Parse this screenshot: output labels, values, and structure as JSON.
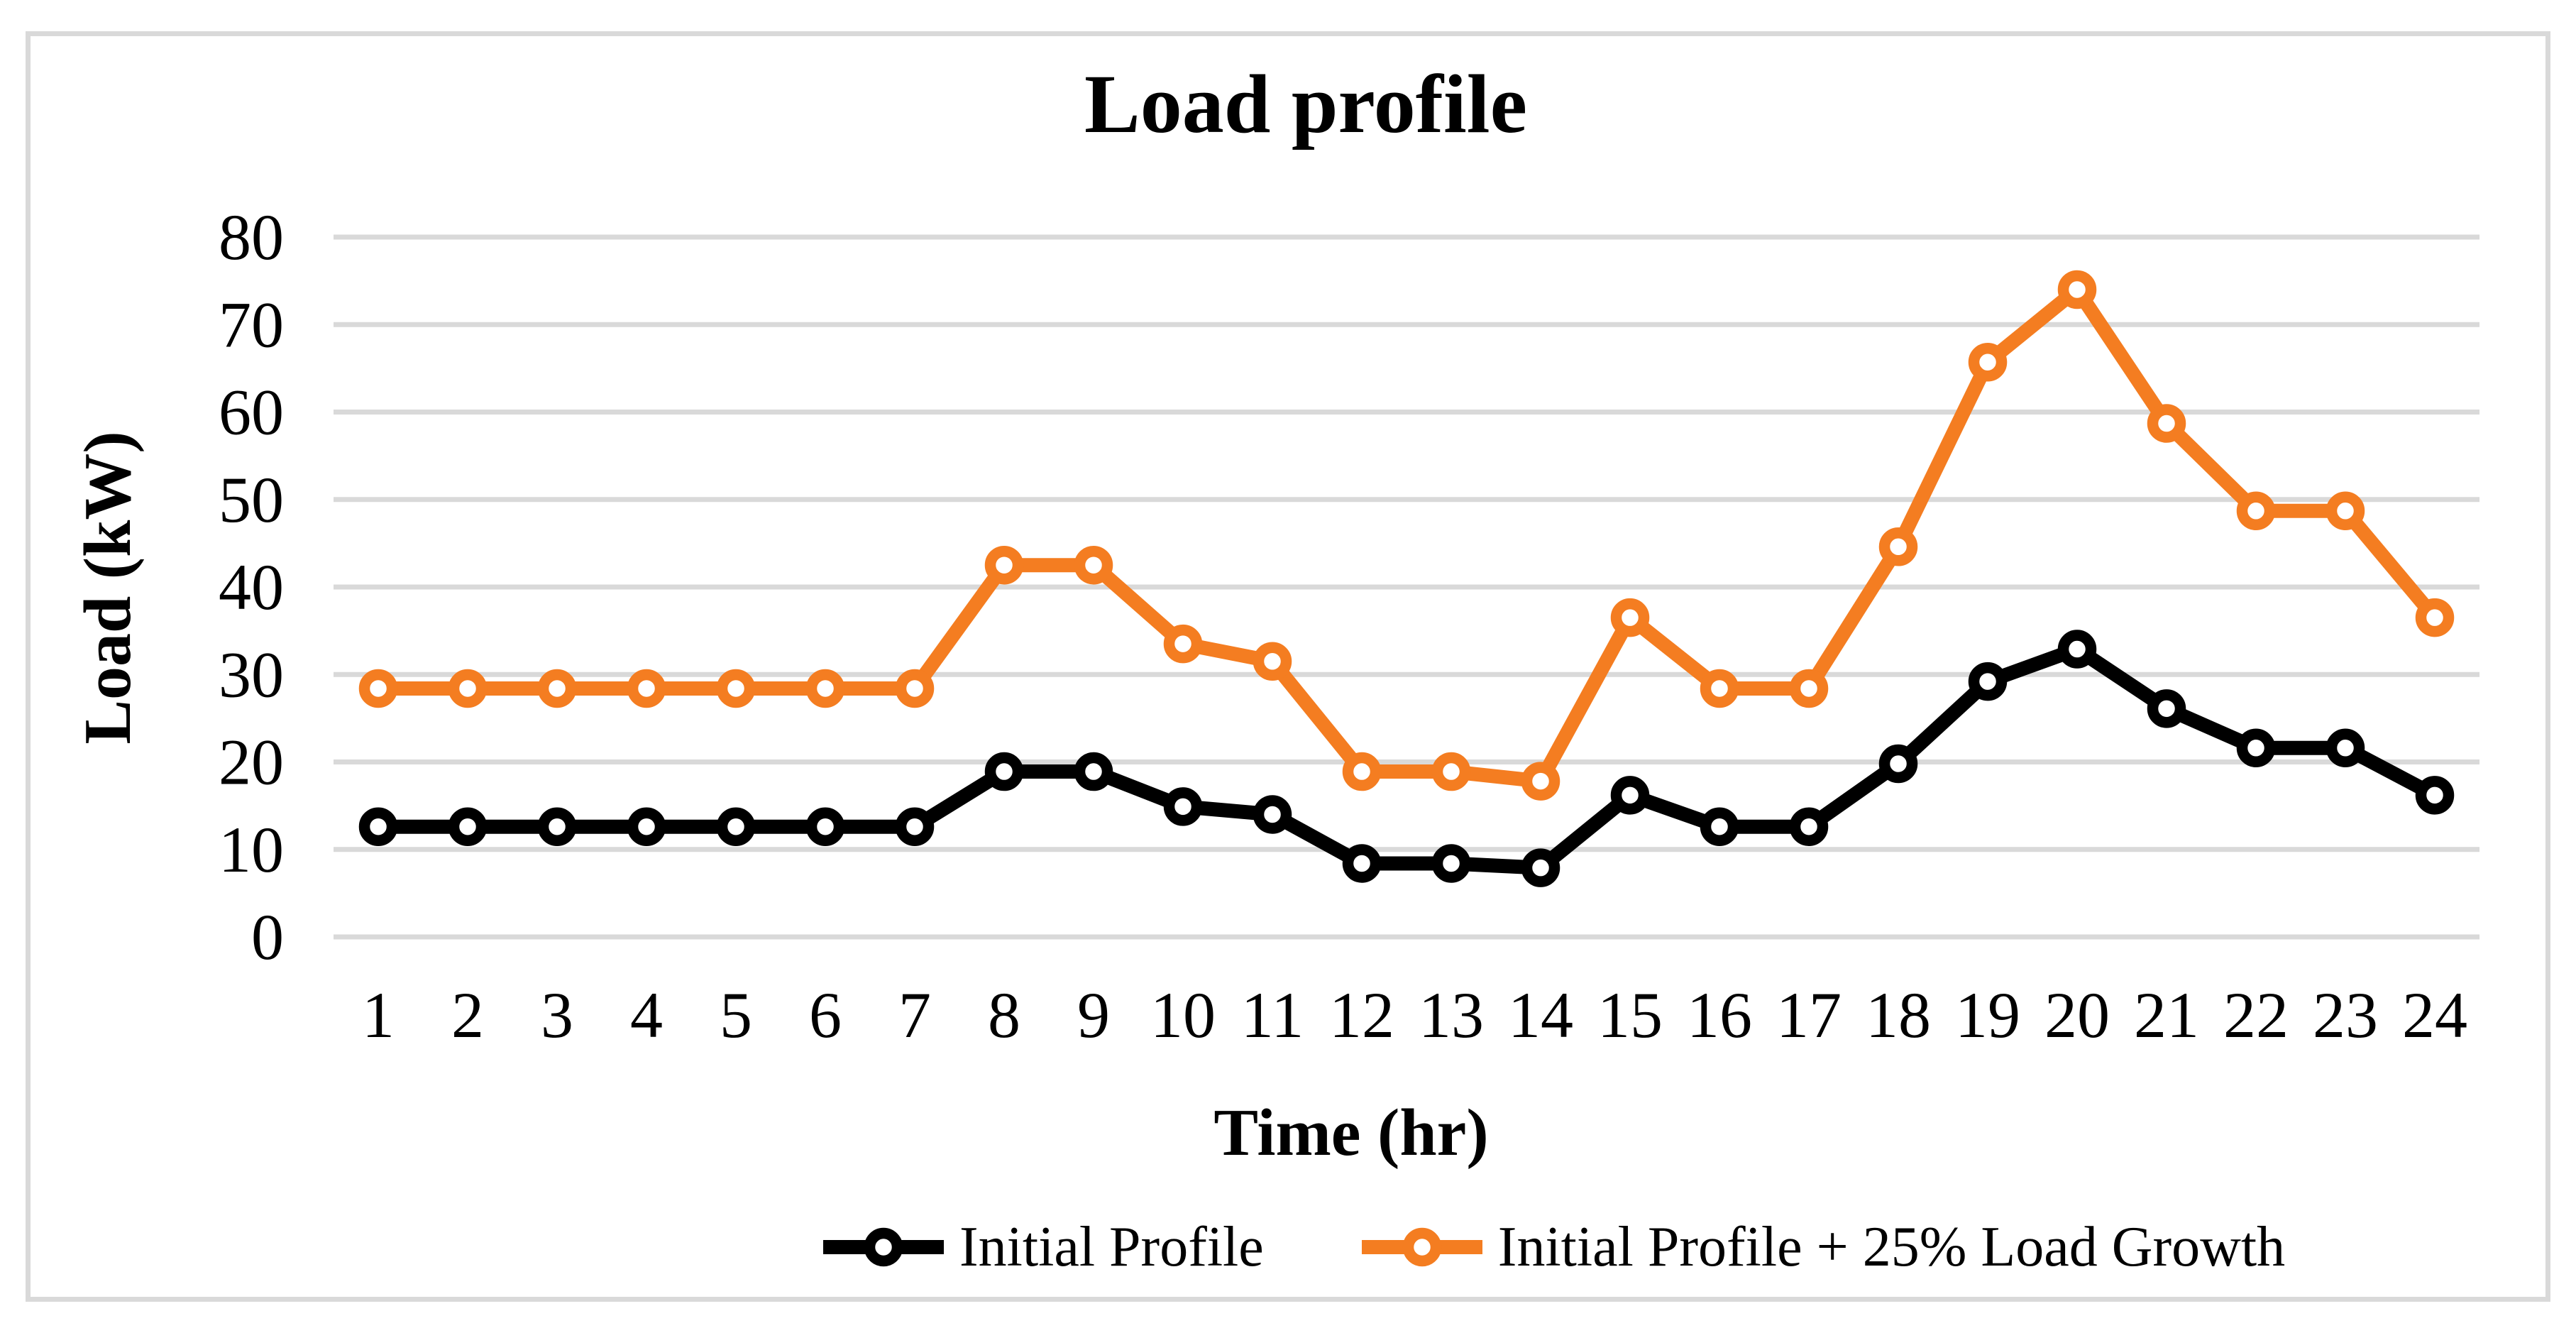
{
  "chart_data": {
    "type": "line",
    "title": "Load profile",
    "xlabel": "Time (hr)",
    "ylabel": "Load (kW)",
    "x": [
      1,
      2,
      3,
      4,
      5,
      6,
      7,
      8,
      9,
      10,
      11,
      12,
      13,
      14,
      15,
      16,
      17,
      18,
      19,
      20,
      21,
      22,
      23,
      24
    ],
    "ylim": [
      0,
      80
    ],
    "yticks": [
      0,
      10,
      20,
      30,
      40,
      50,
      60,
      70,
      80
    ],
    "grid": "horizontal",
    "legend_position": "bottom",
    "colors": {
      "background": "#FFFFFF",
      "grid": "#D9D9D9",
      "frame": "#D9D9D9",
      "text": "#000000"
    },
    "series": [
      {
        "name": "Initial Profile",
        "color": "#000000",
        "values": [
          12.6,
          12.6,
          12.6,
          12.6,
          12.6,
          12.6,
          12.6,
          18.9,
          18.9,
          14.9,
          14.0,
          8.4,
          8.4,
          7.9,
          16.2,
          12.6,
          12.6,
          19.8,
          29.2,
          32.9,
          26.1,
          21.6,
          21.6,
          16.2
        ]
      },
      {
        "name": "Initial Profile + 25% Load Growth",
        "color": "#F47D21",
        "values": [
          28.4,
          28.4,
          28.4,
          28.4,
          28.4,
          28.4,
          28.4,
          42.5,
          42.5,
          33.5,
          31.5,
          18.9,
          18.9,
          17.8,
          36.5,
          28.4,
          28.4,
          44.6,
          65.7,
          74.0,
          58.7,
          48.7,
          48.7,
          36.5
        ]
      }
    ]
  }
}
